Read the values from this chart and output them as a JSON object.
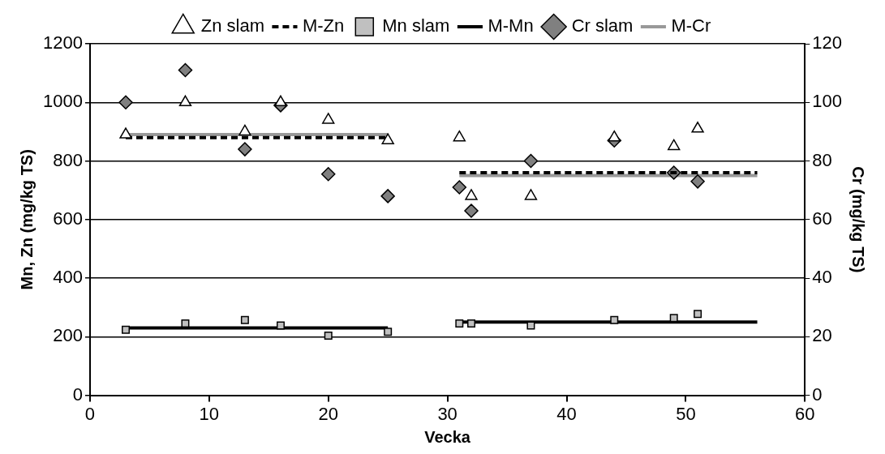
{
  "chart_data": {
    "type": "scatter",
    "xlabel": "Vecka",
    "ylabel": "Mn, Zn (mg/kg TS)",
    "y2label": "Cr (mg/kg TS)",
    "xlim": [
      0,
      60
    ],
    "xticks": [
      0,
      10,
      20,
      30,
      40,
      50,
      60
    ],
    "ylim": [
      0,
      1200
    ],
    "yticks": [
      0,
      200,
      400,
      600,
      800,
      1000,
      1200
    ],
    "y2lim": [
      0,
      120
    ],
    "y2ticks": [
      0,
      20,
      40,
      60,
      80,
      100,
      120
    ],
    "grid": "y",
    "legend": "top",
    "series": [
      {
        "name": "Zn slam",
        "marker": "triangle",
        "color": "#ffffff",
        "x": [
          3,
          8,
          13,
          16,
          20,
          25,
          31,
          32,
          37,
          44,
          49,
          51
        ],
        "values": [
          890,
          1000,
          900,
          1000,
          940,
          870,
          880,
          680,
          680,
          880,
          850,
          910
        ]
      },
      {
        "name": "M-Zn",
        "type": "line",
        "marker": "none",
        "line_style": "dashed",
        "color": "#000000",
        "x": [
          3,
          25
        ],
        "values": [
          880,
          880
        ]
      },
      {
        "type": "line",
        "marker": "none",
        "line_style": "dashed",
        "color": "#000000",
        "x": [
          31,
          56
        ],
        "values": [
          760,
          760
        ]
      },
      {
        "name": "Mn slam",
        "marker": "square",
        "color": "#c0c0c0",
        "x": [
          3,
          8,
          13,
          16,
          20,
          25,
          31,
          32,
          37,
          44,
          49,
          51
        ],
        "values": [
          224,
          245,
          257,
          238,
          204,
          217,
          245,
          245,
          238,
          257,
          264,
          278
        ]
      },
      {
        "name": "M-Mn",
        "type": "line",
        "marker": "none",
        "line_style": "solid",
        "color": "#000000",
        "x": [
          3,
          25
        ],
        "values": [
          230,
          230
        ]
      },
      {
        "type": "line",
        "marker": "none",
        "line_style": "solid",
        "color": "#000000",
        "x": [
          31,
          56
        ],
        "values": [
          250,
          250
        ]
      },
      {
        "name": "Cr slam",
        "marker": "diamond",
        "axis": "y2",
        "color": "#808080",
        "x": [
          3,
          8,
          13,
          16,
          20,
          25,
          31,
          32,
          37,
          44,
          49,
          51
        ],
        "values": [
          100,
          111,
          84,
          99,
          75.5,
          68,
          71,
          63,
          80,
          87,
          76,
          73
        ]
      },
      {
        "name": "M-Cr",
        "type": "line",
        "marker": "none",
        "line_style": "solid",
        "axis": "y2",
        "color": "#999999",
        "x": [
          3,
          25
        ],
        "values": [
          89,
          89
        ]
      },
      {
        "type": "line",
        "marker": "none",
        "line_style": "solid",
        "axis": "y2",
        "color": "#999999",
        "x": [
          31,
          56
        ],
        "values": [
          75,
          75
        ]
      }
    ]
  }
}
